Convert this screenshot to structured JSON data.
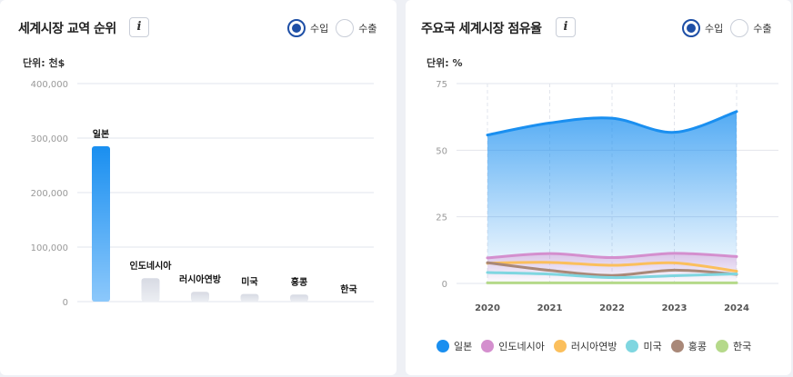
{
  "left_panel": {
    "title": "세계시장 교역 순위",
    "info_label": "i",
    "radios": [
      {
        "label": "수입",
        "selected": true
      },
      {
        "label": "수출",
        "selected": false
      }
    ],
    "unit": "단위: 천$"
  },
  "right_panel": {
    "title": "주요국 세계시장 점유율",
    "info_label": "i",
    "radios": [
      {
        "label": "수입",
        "selected": true
      },
      {
        "label": "수출",
        "selected": false
      }
    ],
    "unit": "단위: %"
  },
  "colors": {
    "accent": "#1e4fa6",
    "japan": "#1a8ff0",
    "indonesia": "#d48fce",
    "russia": "#fbbf5c",
    "usa": "#7fd6e0",
    "hongkong": "#a98878",
    "korea": "#b5d98a"
  },
  "chart_data": [
    {
      "type": "bar",
      "categories": [
        "일본",
        "인도네시아",
        "러시아연방",
        "미국",
        "홍콩",
        "한국"
      ],
      "values": [
        285000,
        43000,
        18000,
        14000,
        13000,
        0
      ],
      "yticks": [
        "400,000",
        "300,000",
        "200,000",
        "100,000",
        "0"
      ],
      "ylim": [
        0,
        400000
      ],
      "grid": true
    },
    {
      "type": "area",
      "x": [
        "2020",
        "2021",
        "2022",
        "2023",
        "2024"
      ],
      "yticks": [
        "75",
        "50",
        "25",
        "0"
      ],
      "ylim": [
        0,
        75
      ],
      "grid": true,
      "legend_position": "bottom",
      "series": [
        {
          "name": "일본",
          "values": [
            55.7,
            60.2,
            62.0,
            56.7,
            64.5
          ]
        },
        {
          "name": "인도네시아",
          "values": [
            9.6,
            11.2,
            9.7,
            11.3,
            10.1
          ]
        },
        {
          "name": "러시아연방",
          "values": [
            7.6,
            7.9,
            6.8,
            7.7,
            4.6
          ]
        },
        {
          "name": "미국",
          "values": [
            4.1,
            3.5,
            2.2,
            2.9,
            3.6
          ]
        },
        {
          "name": "홍콩",
          "values": [
            7.8,
            4.9,
            3.0,
            5.0,
            3.4
          ]
        },
        {
          "name": "한국",
          "values": [
            0.2,
            0.2,
            0.2,
            0.2,
            0.2
          ]
        }
      ]
    }
  ]
}
